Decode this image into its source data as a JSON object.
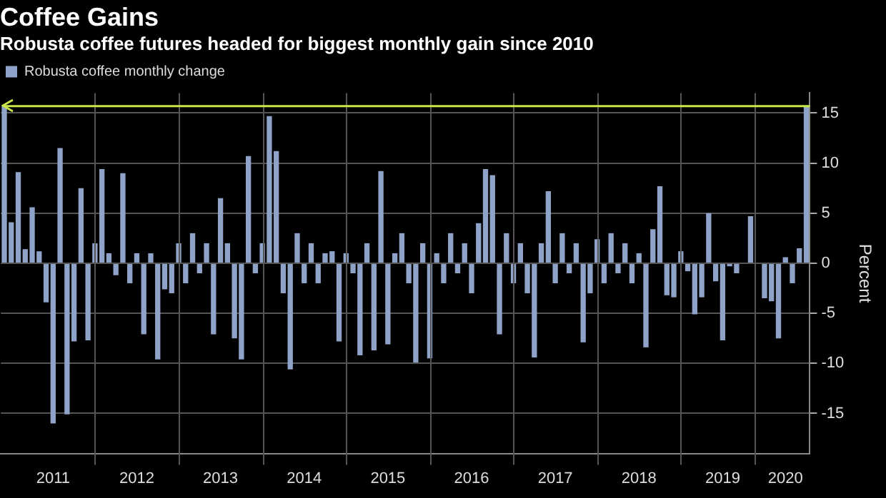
{
  "chart_data": {
    "type": "bar",
    "title": "Coffee Gains",
    "subtitle": "Robusta coffee futures headed for biggest monthly gain since 2010",
    "ylabel": "Percent",
    "categories": [
      null,
      null,
      null,
      null,
      null,
      null,
      null,
      "2011",
      null,
      null,
      null,
      null,
      null,
      null,
      null,
      null,
      null,
      null,
      null,
      "2012",
      null,
      null,
      null,
      null,
      null,
      null,
      null,
      null,
      null,
      null,
      null,
      "2013",
      null,
      null,
      null,
      null,
      null,
      null,
      null,
      null,
      null,
      null,
      null,
      "2014",
      null,
      null,
      null,
      null,
      null,
      null,
      null,
      null,
      null,
      null,
      null,
      "2015",
      null,
      null,
      null,
      null,
      null,
      null,
      null,
      null,
      null,
      null,
      null,
      "2016",
      null,
      null,
      null,
      null,
      null,
      null,
      null,
      null,
      null,
      null,
      null,
      "2017",
      null,
      null,
      null,
      null,
      null,
      null,
      null,
      null,
      null,
      null,
      null,
      "2018",
      null,
      null,
      null,
      null,
      null,
      null,
      null,
      null,
      null,
      null,
      null,
      "2019",
      null,
      null,
      null,
      null,
      null,
      null,
      null,
      null,
      "2020",
      null,
      null,
      null
    ],
    "series": [
      {
        "name": "Robusta coffee monthly change",
        "color": "#8fa3c8",
        "values": [
          15.7,
          4.1,
          9.1,
          1.4,
          5.6,
          1.2,
          -3.9,
          -16.0,
          11.5,
          -15.1,
          -7.8,
          7.5,
          -7.7,
          2,
          9.4,
          1.0,
          -1.2,
          9.0,
          -2.0,
          1,
          -7.1,
          1,
          -9.6,
          -2.6,
          -3,
          2,
          -2,
          3,
          -1,
          2,
          -7.1,
          6.5,
          2,
          -7.5,
          -9.6,
          10.7,
          -1,
          2,
          14.7,
          11.2,
          -3,
          -10.6,
          3,
          -2,
          2,
          -2,
          1,
          1.2,
          -7.8,
          1,
          -1,
          -9.2,
          2,
          -8.7,
          9.2,
          -8.1,
          1,
          3,
          -2,
          -9.9,
          2,
          -9.5,
          1,
          -2,
          3,
          -1,
          2,
          -3,
          4,
          9.4,
          8.8,
          -7.1,
          3,
          -2,
          2,
          -3,
          -9.4,
          2,
          7.2,
          -2,
          3,
          -1,
          2,
          -7.9,
          -3,
          2.4,
          -2,
          3,
          -1,
          2,
          -2,
          1,
          -8.4,
          3.4,
          7.7,
          -3.2,
          -3.4,
          1.2,
          -0.8,
          -5.1,
          -3.4,
          5.0,
          -1.8,
          -7.7,
          -0.3,
          -1.0,
          null,
          4.7,
          null,
          -3.5,
          -3.8,
          -7.5,
          0.6,
          -2.0,
          1.5,
          15.7
        ]
      }
    ],
    "ylim": [
      -19,
      17
    ],
    "yticks": [
      -15,
      -10,
      -5,
      0,
      5,
      10,
      15
    ],
    "grid": true,
    "legend": "top left",
    "ref_lines": [
      {
        "axis": "y",
        "value": 15.7,
        "color": "#c8e64a"
      }
    ]
  }
}
